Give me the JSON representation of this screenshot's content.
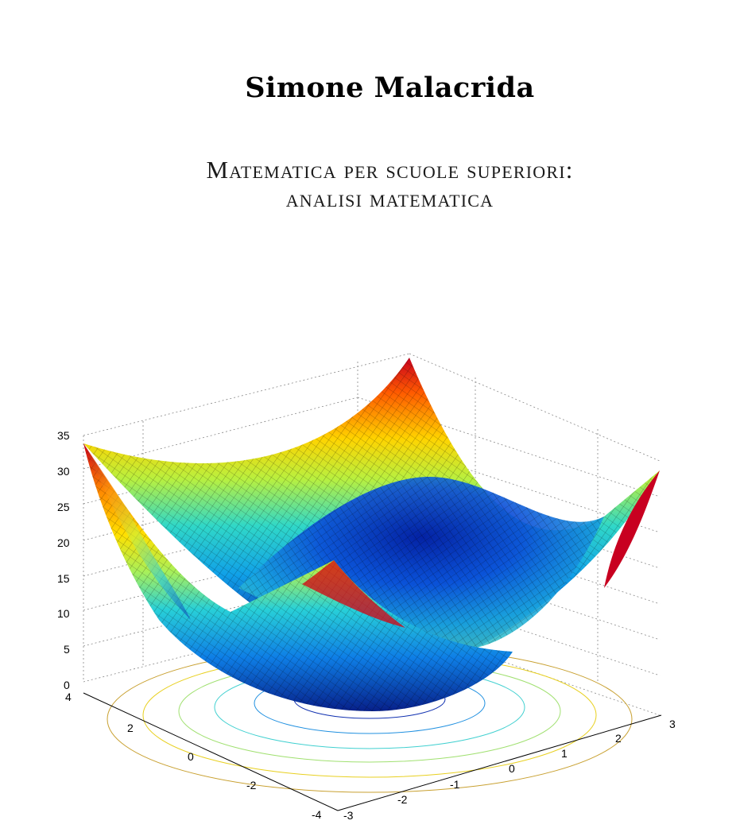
{
  "cover": {
    "author": "Simone Malacrida",
    "title_line1": "Matematica per scuole superiori:",
    "title_line2": "analisi matematica"
  },
  "figure": {
    "surface": "paraboloid",
    "colormap": "jet",
    "grid": true,
    "z_ticks": [
      "0",
      "5",
      "10",
      "15",
      "20",
      "25",
      "30",
      "35"
    ],
    "y_ticks": [
      "4",
      "2",
      "0",
      "-2",
      "-4"
    ],
    "x_ticks": [
      "-3",
      "-2",
      "-1",
      "0",
      "1",
      "2",
      "3"
    ]
  }
}
